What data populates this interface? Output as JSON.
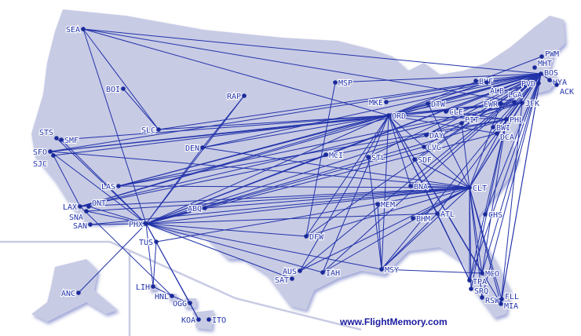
{
  "map": {
    "credit": "www.FlightMemory.com",
    "colors": {
      "land": "#c8cbe4",
      "route": "#2233aa",
      "airport": "#1a2a99",
      "border": "#a8acc8",
      "water": "#ffffff"
    },
    "airports": [
      "SEA",
      "BOI",
      "SLC",
      "RAP",
      "MSP",
      "MKE",
      "ORD",
      "DTW",
      "CLE",
      "PIT",
      "DAY",
      "CVG",
      "SDF",
      "STL",
      "MCI",
      "DEN",
      "SMF",
      "STS",
      "SFO",
      "SJC",
      "LAS",
      "LAX",
      "SNA",
      "ONT",
      "SAN",
      "PHX",
      "TUS",
      "ABQ",
      "DFW",
      "AUS",
      "SAT",
      "IAH",
      "MSY",
      "MEM",
      "BNA",
      "BHM",
      "ATL",
      "CLT",
      "CHS",
      "MCO",
      "TPA",
      "SRQ",
      "RSW",
      "FLL",
      "MIA",
      "DCA",
      "BWI",
      "PHL",
      "EWR",
      "JFK",
      "BUF",
      "ALB",
      "MHT",
      "BOS",
      "PWM",
      "HYA",
      "ACK",
      "PVD",
      "ANC",
      "LIH",
      "HNL",
      "OGG",
      "KOA",
      "ITO"
    ],
    "routes": [
      [
        "SEA",
        "ORD"
      ],
      [
        "SEA",
        "BOS"
      ],
      [
        "SEA",
        "PHX"
      ],
      [
        "SEA",
        "SLC"
      ],
      [
        "SEA",
        "JFK"
      ],
      [
        "BOI",
        "SLC"
      ],
      [
        "SLC",
        "BOS"
      ],
      [
        "SLC",
        "ORD"
      ],
      [
        "RAP",
        "DEN"
      ],
      [
        "RAP",
        "PHX"
      ],
      [
        "MSP",
        "BOS"
      ],
      [
        "MSP",
        "DFW"
      ],
      [
        "ORD",
        "BOS"
      ],
      [
        "ORD",
        "JFK"
      ],
      [
        "ORD",
        "EWR"
      ],
      [
        "ORD",
        "PHL"
      ],
      [
        "ORD",
        "DCA"
      ],
      [
        "ORD",
        "LGA"
      ],
      [
        "ORD",
        "SFO"
      ],
      [
        "ORD",
        "LAX"
      ],
      [
        "ORD",
        "LAS"
      ],
      [
        "ORD",
        "PHX"
      ],
      [
        "ORD",
        "DEN"
      ],
      [
        "ORD",
        "MSY"
      ],
      [
        "ORD",
        "ATL"
      ],
      [
        "ORD",
        "MIA"
      ],
      [
        "ORD",
        "TPA"
      ],
      [
        "ORD",
        "MCO"
      ],
      [
        "ORD",
        "DFW"
      ],
      [
        "ORD",
        "IAH"
      ],
      [
        "ORD",
        "CLT"
      ],
      [
        "ORD",
        "BNA"
      ],
      [
        "ORD",
        "SMF"
      ],
      [
        "ORD",
        "SJC"
      ],
      [
        "ORD",
        "AUS"
      ],
      [
        "MKE",
        "BOS"
      ],
      [
        "DTW",
        "BOS"
      ],
      [
        "DTW",
        "CLT"
      ],
      [
        "CLE",
        "BOS"
      ],
      [
        "CLE",
        "PHL"
      ],
      [
        "PIT",
        "BOS"
      ],
      [
        "PIT",
        "CLT"
      ],
      [
        "DAY",
        "BOS"
      ],
      [
        "CVG",
        "BOS"
      ],
      [
        "SDF",
        "CLT"
      ],
      [
        "SDF",
        "BOS"
      ],
      [
        "STL",
        "BOS"
      ],
      [
        "STL",
        "MSY"
      ],
      [
        "MCI",
        "BOS"
      ],
      [
        "MCI",
        "PHX"
      ],
      [
        "DEN",
        "BOS"
      ],
      [
        "DEN",
        "PHX"
      ],
      [
        "DEN",
        "CLT"
      ],
      [
        "SFO",
        "BOS"
      ],
      [
        "SFO",
        "PHX"
      ],
      [
        "SFO",
        "JFK"
      ],
      [
        "SFO",
        "CLT"
      ],
      [
        "SJC",
        "LAX"
      ],
      [
        "SMF",
        "PHX"
      ],
      [
        "STS",
        "PHX"
      ],
      [
        "LAS",
        "BOS"
      ],
      [
        "LAS",
        "CLT"
      ],
      [
        "LAS",
        "PHL"
      ],
      [
        "LAS",
        "JFK"
      ],
      [
        "LAX",
        "BOS"
      ],
      [
        "LAX",
        "CLT"
      ],
      [
        "LAX",
        "JFK"
      ],
      [
        "LAX",
        "PHL"
      ],
      [
        "LAX",
        "HNL"
      ],
      [
        "SNA",
        "PHX"
      ],
      [
        "SNA",
        "CLT"
      ],
      [
        "ONT",
        "PHX"
      ],
      [
        "SAN",
        "PHX"
      ],
      [
        "SAN",
        "CLT"
      ],
      [
        "PHX",
        "BOS"
      ],
      [
        "PHX",
        "CLT"
      ],
      [
        "PHX",
        "PHL"
      ],
      [
        "PHX",
        "JFK"
      ],
      [
        "PHX",
        "DCA"
      ],
      [
        "PHX",
        "ANC"
      ],
      [
        "PHX",
        "OGG"
      ],
      [
        "PHX",
        "KOA"
      ],
      [
        "PHX",
        "LIH"
      ],
      [
        "PHX",
        "DFW"
      ],
      [
        "PHX",
        "ATL"
      ],
      [
        "PHX",
        "MSY"
      ],
      [
        "PHX",
        "IAH"
      ],
      [
        "PHX",
        "TUS"
      ],
      [
        "PHX",
        "ABQ"
      ],
      [
        "PHX",
        "CVG"
      ],
      [
        "TUS",
        "CLT"
      ],
      [
        "TUS",
        "LIH"
      ],
      [
        "ABQ",
        "CLT"
      ],
      [
        "DFW",
        "CLT"
      ],
      [
        "DFW",
        "BOS"
      ],
      [
        "AUS",
        "BOS"
      ],
      [
        "AUS",
        "CLT"
      ],
      [
        "SAT",
        "PHX"
      ],
      [
        "IAH",
        "BOS"
      ],
      [
        "IAH",
        "CLT"
      ],
      [
        "MSY",
        "BOS"
      ],
      [
        "MSY",
        "CLT"
      ],
      [
        "MSY",
        "ATL"
      ],
      [
        "MSY",
        "MCO"
      ],
      [
        "MEM",
        "MSY"
      ],
      [
        "BNA",
        "CLT"
      ],
      [
        "BNA",
        "BOS"
      ],
      [
        "BHM",
        "CLT"
      ],
      [
        "ATL",
        "BOS"
      ],
      [
        "ATL",
        "TPA"
      ],
      [
        "CLT",
        "BOS"
      ],
      [
        "CLT",
        "JFK"
      ],
      [
        "CLT",
        "PHL"
      ],
      [
        "CLT",
        "EWR"
      ],
      [
        "CLT",
        "MCO"
      ],
      [
        "CLT",
        "TPA"
      ],
      [
        "CLT",
        "MIA"
      ],
      [
        "CLT",
        "FLL"
      ],
      [
        "CLT",
        "RSW"
      ],
      [
        "CLT",
        "SRQ"
      ],
      [
        "CHS",
        "BOS"
      ],
      [
        "MCO",
        "BOS"
      ],
      [
        "MCO",
        "PHL"
      ],
      [
        "TPA",
        "BOS"
      ],
      [
        "TPA",
        "PHL"
      ],
      [
        "RSW",
        "BOS"
      ],
      [
        "FLL",
        "BOS"
      ],
      [
        "MIA",
        "BOS"
      ],
      [
        "MIA",
        "JFK"
      ],
      [
        "SRQ",
        "PHL"
      ],
      [
        "DCA",
        "BOS"
      ],
      [
        "BWI",
        "BOS"
      ],
      [
        "PHL",
        "BOS"
      ],
      [
        "BUF",
        "BOS"
      ],
      [
        "ALB",
        "ORD"
      ],
      [
        "HNL",
        "OGG"
      ],
      [
        "OGG",
        "KOA"
      ],
      [
        "LIH",
        "HNL"
      ],
      [
        "PVD",
        "ORD"
      ],
      [
        "PWM",
        "ORD"
      ],
      [
        "HYA",
        "BOS"
      ],
      [
        "ACK",
        "BOS"
      ]
    ]
  }
}
